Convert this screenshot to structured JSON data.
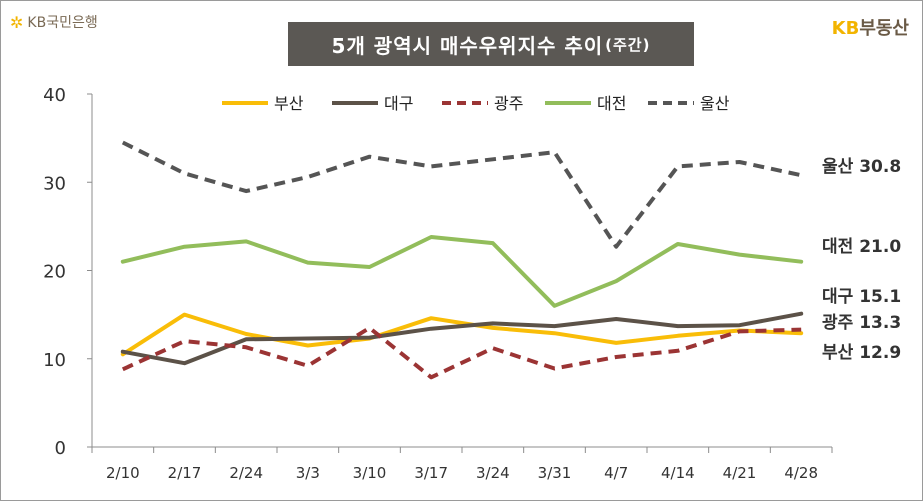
{
  "header": {
    "logo_left_text": "KB국민은행",
    "title_main": "5개 광역시 매수우위지수 추이",
    "title_sub": "(주간)",
    "logo_right_kb": "KB",
    "logo_right_rest": "부동산"
  },
  "colors": {
    "부산": "#f9bd08",
    "대구": "#5c5248",
    "광주": "#9b3434",
    "대전": "#92bd5b",
    "울산": "#555555"
  },
  "chart_data": {
    "type": "line",
    "categories": [
      "2/10",
      "2/17",
      "2/24",
      "3/3",
      "3/10",
      "3/17",
      "3/24",
      "3/31",
      "4/7",
      "4/14",
      "4/21",
      "4/28"
    ],
    "ylim": [
      0,
      40
    ],
    "yticks": [
      0,
      10,
      20,
      30,
      40
    ],
    "legend_position": "top",
    "grid": false,
    "series": [
      {
        "name": "부산",
        "values": [
          10.5,
          15.0,
          12.8,
          11.5,
          12.3,
          14.6,
          13.5,
          12.9,
          11.8,
          12.6,
          13.2,
          12.9
        ],
        "style": "solid",
        "end_label": "부산",
        "end_value": "12.9"
      },
      {
        "name": "대구",
        "values": [
          10.8,
          9.5,
          12.2,
          12.3,
          12.4,
          13.4,
          14.0,
          13.7,
          14.5,
          13.7,
          13.8,
          15.1
        ],
        "style": "solid",
        "end_label": "대구",
        "end_value": "15.1"
      },
      {
        "name": "광주",
        "values": [
          8.8,
          12.0,
          11.3,
          9.2,
          13.5,
          7.9,
          11.2,
          8.9,
          10.2,
          10.9,
          13.1,
          13.3
        ],
        "style": "dashed",
        "end_label": "광주",
        "end_value": "13.3"
      },
      {
        "name": "대전",
        "values": [
          21.0,
          22.7,
          23.3,
          20.9,
          20.4,
          23.8,
          23.1,
          16.0,
          18.8,
          23.0,
          21.8,
          21.0
        ],
        "style": "solid",
        "end_label": "대전",
        "end_value": "21.0"
      },
      {
        "name": "울산",
        "values": [
          34.5,
          31.0,
          29.0,
          30.6,
          32.9,
          31.8,
          32.6,
          33.4,
          22.7,
          31.8,
          32.3,
          30.8
        ],
        "style": "dashed",
        "end_label": "울산",
        "end_value": "30.8"
      }
    ]
  }
}
